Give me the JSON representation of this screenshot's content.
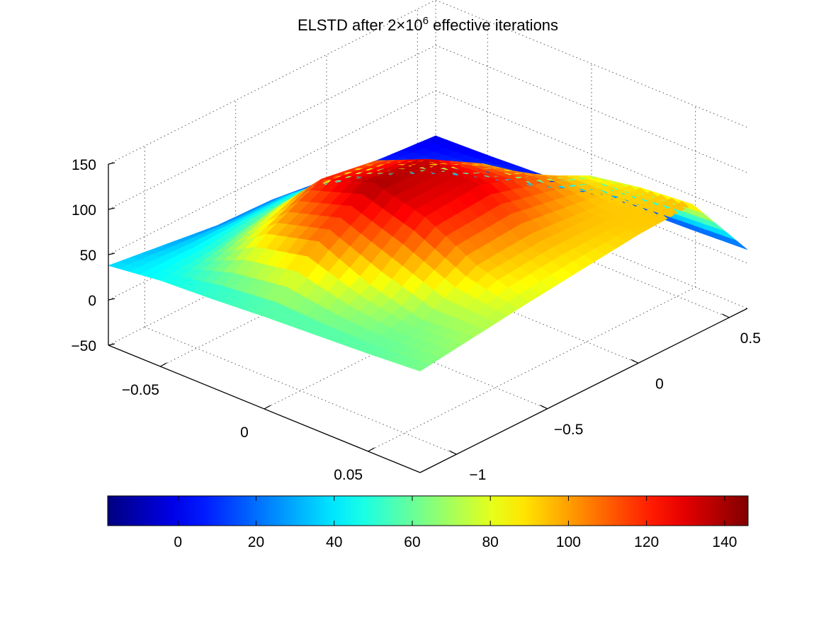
{
  "chart_data": {
    "type": "surface3d",
    "title": {
      "prefix": "ELSTD after 2×10",
      "superscript": "6",
      "suffix": " effective iterations"
    },
    "x_axis": {
      "range": [
        -0.075,
        0.075
      ],
      "ticks": [
        -0.05,
        0,
        0.05
      ],
      "tick_labels": [
        "−0.05",
        "0",
        "0.05"
      ]
    },
    "y_axis": {
      "range": [
        -1.2,
        0.6
      ],
      "ticks": [
        -1,
        -0.5,
        0,
        0.5
      ],
      "tick_labels": [
        "−1",
        "−0.5",
        "0",
        "0.5"
      ]
    },
    "z_axis": {
      "range": [
        -50,
        150
      ],
      "ticks": [
        -50,
        0,
        50,
        100,
        150
      ],
      "tick_labels": [
        "−50",
        "0",
        "50",
        "100",
        "150"
      ]
    },
    "grid": true,
    "colormap": "jet",
    "colorbar": {
      "placement": "bottom",
      "range": [
        -18,
        146
      ],
      "ticks": [
        0,
        20,
        40,
        60,
        80,
        100,
        120,
        140
      ],
      "tick_labels": [
        "0",
        "20",
        "40",
        "60",
        "80",
        "100",
        "120",
        "140"
      ]
    },
    "surface_description_values": {
      "x_grid": [
        -0.075,
        -0.05,
        -0.025,
        0,
        0.025,
        0.05,
        0.075
      ],
      "y_grid": [
        -1.2,
        -0.9,
        -0.6,
        -0.3,
        0,
        0.3,
        0.6
      ],
      "z": [
        [
          38,
          30,
          22,
          20,
          12,
          5,
          0
        ],
        [
          45,
          50,
          60,
          62,
          40,
          15,
          2
        ],
        [
          48,
          90,
          120,
          110,
          70,
          30,
          5
        ],
        [
          52,
          105,
          140,
          135,
          100,
          45,
          8
        ],
        [
          55,
          80,
          125,
          130,
          110,
          80,
          10
        ],
        [
          58,
          65,
          95,
          100,
          95,
          90,
          12
        ],
        [
          62,
          70,
          78,
          85,
          92,
          95,
          15
        ]
      ]
    }
  }
}
